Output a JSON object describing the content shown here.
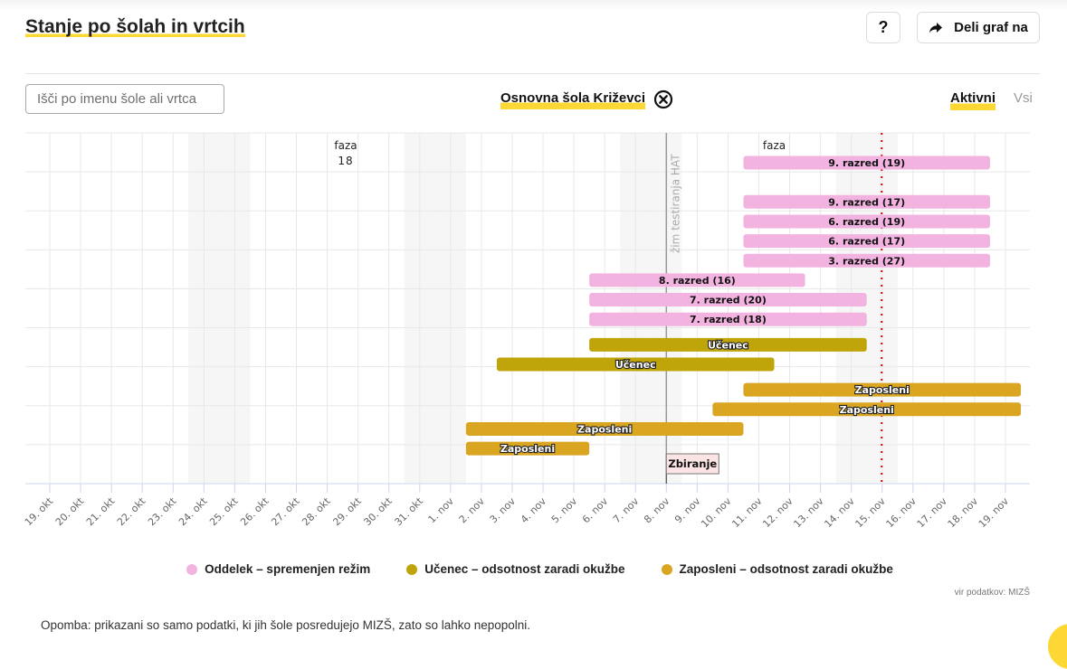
{
  "header": {
    "title": "Stanje po šolah in vrtcih",
    "help_label": "?",
    "share_label": "Deli graf na"
  },
  "filters": {
    "search_placeholder": "Išči po imenu šole ali vrtca",
    "search_value": "",
    "selected_school": "Osnovna šola Križevci",
    "toggle_active": "Aktivni",
    "toggle_all": "Vsi",
    "toggle_selected": "Aktivni"
  },
  "colors": {
    "oddelek": "#f2b3e0",
    "ucenec": "#bfa50a",
    "zaposleni": "#daa520",
    "accent": "#fdd835",
    "today_line": "#e00000",
    "hat_line": "#999999",
    "zbiranje_fill": "#fde4e4"
  },
  "chart_data": {
    "type": "gantt",
    "title": "Stanje po šolah in vrtcih",
    "xlabel": "",
    "ylabel": "",
    "x_range": [
      "2020-10-19",
      "2020-11-19"
    ],
    "tick_labels": [
      "19. okt",
      "20. okt",
      "21. okt",
      "22. okt",
      "23. okt",
      "24. okt",
      "25. okt",
      "26. okt",
      "27. okt",
      "28. okt",
      "29. okt",
      "30. okt",
      "31. okt",
      "1. nov",
      "2. nov",
      "3. nov",
      "4. nov",
      "5. nov",
      "6. nov",
      "7. nov",
      "8. nov",
      "9. nov",
      "10. nov",
      "11. nov",
      "12. nov",
      "13. nov",
      "14. nov",
      "15. nov",
      "16. nov",
      "17. nov",
      "18. nov",
      "19. nov"
    ],
    "grid": true,
    "weekend_day_indices": [
      5,
      6,
      12,
      13,
      19,
      20,
      26,
      27
    ],
    "bars": [
      {
        "row": 0.0,
        "label": "9. razred (19)",
        "category": "oddelek",
        "start_day": 23,
        "end_day": 30
      },
      {
        "row": 1.0,
        "label": "9. razred (17)",
        "category": "oddelek",
        "start_day": 23,
        "end_day": 30
      },
      {
        "row": 1.5,
        "label": "6. razred (19)",
        "category": "oddelek",
        "start_day": 23,
        "end_day": 30
      },
      {
        "row": 2.0,
        "label": "6. razred (17)",
        "category": "oddelek",
        "start_day": 23,
        "end_day": 30
      },
      {
        "row": 2.5,
        "label": "3. razred (27)",
        "category": "oddelek",
        "start_day": 23,
        "end_day": 30
      },
      {
        "row": 3.0,
        "label": "8. razred (16)",
        "category": "oddelek",
        "start_day": 18,
        "end_day": 24
      },
      {
        "row": 3.5,
        "label": "7. razred (20)",
        "category": "oddelek",
        "start_day": 18,
        "end_day": 26
      },
      {
        "row": 4.0,
        "label": "7. razred (18)",
        "category": "oddelek",
        "start_day": 18,
        "end_day": 26
      },
      {
        "row": 4.65,
        "label": "Učenec",
        "category": "ucenec",
        "start_day": 18,
        "end_day": 26
      },
      {
        "row": 5.15,
        "label": "Učenec",
        "category": "ucenec",
        "start_day": 15,
        "end_day": 23
      },
      {
        "row": 5.8,
        "label": "Zaposleni",
        "category": "zaposleni",
        "start_day": 23,
        "end_day": 31
      },
      {
        "row": 6.3,
        "label": "Zaposleni",
        "category": "zaposleni",
        "start_day": 22,
        "end_day": 31
      },
      {
        "row": 6.8,
        "label": "Zaposleni",
        "category": "zaposleni",
        "start_day": 14,
        "end_day": 22
      },
      {
        "row": 7.3,
        "label": "Zaposleni",
        "category": "zaposleni",
        "start_day": 14,
        "end_day": 17
      }
    ],
    "annotations": [
      {
        "type": "text",
        "label_line1": "faza",
        "label_line2": "18",
        "day": 9.6
      },
      {
        "type": "text",
        "label_line1": "faza",
        "label_line2": "",
        "day": 23.5
      },
      {
        "type": "vline",
        "label": "režim testiranja HAT",
        "day": 20,
        "visible_label": "žim testiranja HAT"
      },
      {
        "type": "today",
        "day": 27
      },
      {
        "type": "marker",
        "label": "Zbiranje",
        "day": 20
      }
    ],
    "legend": [
      {
        "key": "oddelek",
        "label": "Oddelek – spremenjen režim"
      },
      {
        "key": "ucenec",
        "label": "Učenec – odsotnost zaradi okužbe"
      },
      {
        "key": "zaposleni",
        "label": "Zaposleni – odsotnost zaradi okužbe"
      }
    ],
    "legend_position": "bottom"
  },
  "footer": {
    "source": "vir podatkov: MIZŠ",
    "note": "Opomba: prikazani so samo podatki, ki jih šole posredujejo MIZŠ, zato so lahko nepopolni."
  }
}
